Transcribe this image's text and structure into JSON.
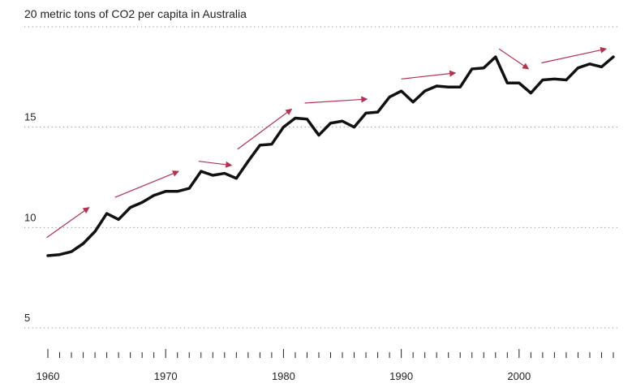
{
  "chart_data": {
    "type": "line",
    "title": "20 metric tons of CO2 per capita in Australia",
    "xlabel": "",
    "ylabel": "",
    "xlim": [
      1960,
      2008
    ],
    "ylim": [
      5,
      20
    ],
    "y_ticks": [
      {
        "value": 20,
        "label": ""
      },
      {
        "value": 15,
        "label": "15"
      },
      {
        "value": 10,
        "label": "10"
      },
      {
        "value": 5,
        "label": "5"
      }
    ],
    "x_tick_labels": [
      {
        "value": 1960,
        "label": "1960"
      },
      {
        "value": 1970,
        "label": "1970"
      },
      {
        "value": 1980,
        "label": "1980"
      },
      {
        "value": 1990,
        "label": "1990"
      },
      {
        "value": 2000,
        "label": "2000"
      }
    ],
    "grid": true,
    "legend": "none",
    "line_color": "#111111",
    "arrow_color": "#b3314f",
    "series": [
      {
        "x": [
          1960,
          1961,
          1962,
          1963,
          1964,
          1965,
          1966,
          1967,
          1968,
          1969,
          1970,
          1971,
          1972,
          1973,
          1974,
          1975,
          1976,
          1977,
          1978,
          1979,
          1980,
          1981,
          1982,
          1983,
          1984,
          1985,
          1986,
          1987,
          1988,
          1989,
          1990,
          1991,
          1992,
          1993,
          1994,
          1995,
          1996,
          1997,
          1998,
          1999,
          2000,
          2001,
          2002,
          2003,
          2004,
          2005,
          2006,
          2007,
          2008
        ],
        "values": [
          8.6,
          8.65,
          8.8,
          9.2,
          9.8,
          10.7,
          10.4,
          11.0,
          11.25,
          11.6,
          11.8,
          11.8,
          11.95,
          12.8,
          12.6,
          12.7,
          12.45,
          13.3,
          14.1,
          14.15,
          15.0,
          15.45,
          15.4,
          14.6,
          15.2,
          15.3,
          15.0,
          15.7,
          15.75,
          16.5,
          16.8,
          16.25,
          16.8,
          17.05,
          17.0,
          17.0,
          17.9,
          17.95,
          18.5,
          17.2,
          17.2,
          16.7,
          17.35,
          17.4,
          17.35,
          17.95,
          18.15,
          18.0,
          18.5
        ]
      }
    ],
    "annotations": [
      {
        "type": "arrow",
        "from": [
          1959.9,
          9.5
        ],
        "to": [
          1963.5,
          11.0
        ]
      },
      {
        "type": "arrow",
        "from": [
          1965.7,
          11.5
        ],
        "to": [
          1971.1,
          12.8
        ]
      },
      {
        "type": "arrow",
        "from": [
          1972.8,
          13.3
        ],
        "to": [
          1975.6,
          13.1
        ]
      },
      {
        "type": "arrow",
        "from": [
          1976.1,
          13.9
        ],
        "to": [
          1980.7,
          15.9
        ]
      },
      {
        "type": "arrow",
        "from": [
          1981.8,
          16.2
        ],
        "to": [
          1987.1,
          16.4
        ]
      },
      {
        "type": "arrow",
        "from": [
          1990.0,
          17.4
        ],
        "to": [
          1994.6,
          17.7
        ]
      },
      {
        "type": "arrow",
        "from": [
          1998.3,
          18.9
        ],
        "to": [
          2000.8,
          17.9
        ]
      },
      {
        "type": "arrow",
        "from": [
          2001.9,
          18.2
        ],
        "to": [
          2007.4,
          18.9
        ]
      }
    ]
  }
}
